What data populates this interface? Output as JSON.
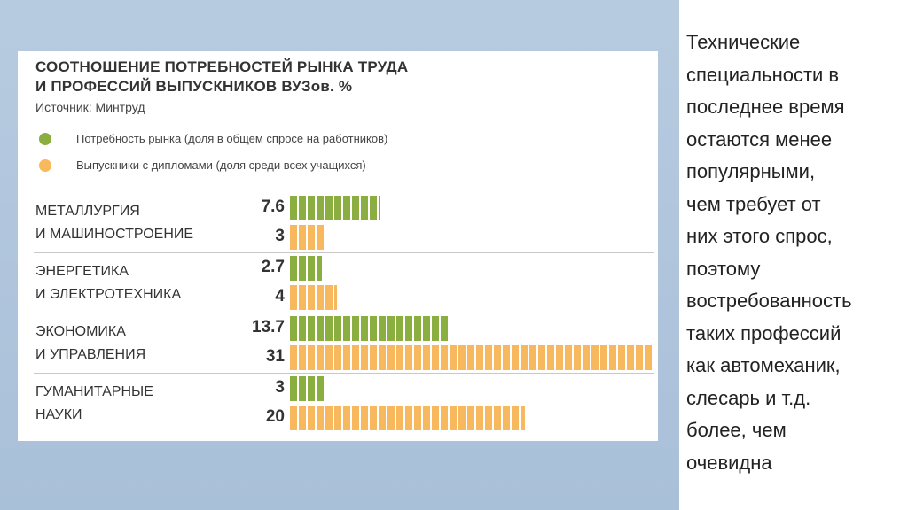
{
  "chart_data": {
    "type": "bar",
    "title": "СООТНОШЕНИЕ ПОТРЕБНОСТЕЙ РЫНКА ТРУДА И ПРОФЕССИЙ ВЫПУСКНИКОВ ВУЗов. %",
    "title_lines": [
      "СООТНОШЕНИЕ ПОТРЕБНОСТЕЙ РЫНКА ТРУДА",
      "И ПРОФЕССИЙ ВЫПУСКНИКОВ ВУЗов. %"
    ],
    "source": "Источник: Минтруд",
    "orientation": "horizontal",
    "categories": [
      {
        "lines": [
          "МЕТАЛЛУРГИЯ",
          "И МАШИНОСТРОЕНИЕ"
        ]
      },
      {
        "lines": [
          "ЭНЕРГЕТИКА",
          "И ЭЛЕКТРОТЕХНИКА"
        ]
      },
      {
        "lines": [
          "ЭКОНОМИКА",
          "И УПРАВЛЕНИЯ"
        ]
      },
      {
        "lines": [
          "ГУМАНИТАРНЫЕ",
          "НАУКИ"
        ]
      }
    ],
    "series": [
      {
        "name": "Потребность рынка (доля в общем спросе на работников)",
        "color": "#8aae3f",
        "values": [
          7.6,
          2.7,
          13.7,
          3
        ],
        "labels": [
          "7.6",
          "2.7",
          "13.7",
          "3"
        ]
      },
      {
        "name": "Выпускники с дипломами (доля среди всех учащихся)",
        "color": "#f8b85e",
        "values": [
          3,
          4,
          31,
          20
        ],
        "labels": [
          "3",
          "4",
          "31",
          "20"
        ]
      }
    ],
    "xlim": [
      0,
      31
    ],
    "legend_position": "top-left",
    "grid": false
  },
  "side_text": {
    "lines": [
      "Технические",
      "специальности в",
      "последнее время",
      "остаются менее",
      "популярными,",
      "чем требует от",
      "них этого спрос,",
      "поэтому",
      "востребованность",
      "таких профессий",
      "как автомеханик,",
      "слесарь  и т.д.",
      "более, чем",
      "очевидна"
    ]
  }
}
